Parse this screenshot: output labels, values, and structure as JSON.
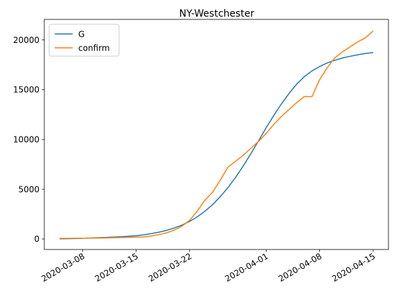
{
  "chart_data": {
    "type": "line",
    "title": "NY-Westchester",
    "xlabel": "",
    "ylabel": "",
    "x_axis_type": "date",
    "xlim": [
      "2020-03-03",
      "2020-04-17"
    ],
    "ylim": [
      -1050,
      22050
    ],
    "x_ticks": [
      "2020-03-08",
      "2020-03-15",
      "2020-03-22",
      "2020-04-01",
      "2020-04-08",
      "2020-04-15"
    ],
    "y_ticks": [
      0,
      5000,
      10000,
      15000,
      20000
    ],
    "grid": false,
    "legend_position": "upper-left",
    "series": [
      {
        "name": "G",
        "color": "#1f77b4",
        "x": [
          "2020-03-05",
          "2020-03-06",
          "2020-03-07",
          "2020-03-08",
          "2020-03-09",
          "2020-03-10",
          "2020-03-11",
          "2020-03-12",
          "2020-03-13",
          "2020-03-14",
          "2020-03-15",
          "2020-03-16",
          "2020-03-17",
          "2020-03-18",
          "2020-03-19",
          "2020-03-20",
          "2020-03-21",
          "2020-03-22",
          "2020-03-23",
          "2020-03-24",
          "2020-03-25",
          "2020-03-26",
          "2020-03-27",
          "2020-03-28",
          "2020-03-29",
          "2020-03-30",
          "2020-03-31",
          "2020-04-01",
          "2020-04-02",
          "2020-04-03",
          "2020-04-04",
          "2020-04-05",
          "2020-04-06",
          "2020-04-07",
          "2020-04-08",
          "2020-04-09",
          "2020-04-10",
          "2020-04-11",
          "2020-04-12",
          "2020-04-13",
          "2020-04-14",
          "2020-04-15"
        ],
        "values": [
          20,
          30,
          45,
          70,
          100,
          130,
          160,
          190,
          230,
          280,
          330,
          420,
          540,
          690,
          870,
          1110,
          1400,
          1770,
          2230,
          2790,
          3450,
          4250,
          5150,
          6180,
          7320,
          8560,
          9840,
          11160,
          12400,
          13560,
          14620,
          15550,
          16300,
          16880,
          17320,
          17680,
          17950,
          18180,
          18350,
          18500,
          18630,
          18720
        ]
      },
      {
        "name": "confirm",
        "color": "#ff7f0e",
        "x": [
          "2020-03-05",
          "2020-03-06",
          "2020-03-07",
          "2020-03-08",
          "2020-03-09",
          "2020-03-10",
          "2020-03-11",
          "2020-03-12",
          "2020-03-13",
          "2020-03-14",
          "2020-03-15",
          "2020-03-16",
          "2020-03-17",
          "2020-03-18",
          "2020-03-19",
          "2020-03-20",
          "2020-03-21",
          "2020-03-22",
          "2020-03-23",
          "2020-03-24",
          "2020-03-25",
          "2020-03-26",
          "2020-03-27",
          "2020-03-28",
          "2020-03-29",
          "2020-03-30",
          "2020-03-31",
          "2020-04-01",
          "2020-04-02",
          "2020-04-03",
          "2020-04-04",
          "2020-04-05",
          "2020-04-06",
          "2020-04-07",
          "2020-04-08",
          "2020-04-09",
          "2020-04-10",
          "2020-04-11",
          "2020-04-12",
          "2020-04-13",
          "2020-04-14",
          "2020-04-15"
        ],
        "values": [
          60,
          60,
          70,
          80,
          90,
          100,
          110,
          130,
          150,
          170,
          190,
          210,
          300,
          450,
          620,
          900,
          1300,
          1870,
          2800,
          3900,
          4700,
          5900,
          7200,
          7800,
          8400,
          9100,
          9800,
          10600,
          11500,
          12300,
          13000,
          13700,
          14300,
          14300,
          16000,
          17200,
          18200,
          18800,
          19300,
          19800,
          20200,
          20900
        ]
      }
    ]
  }
}
